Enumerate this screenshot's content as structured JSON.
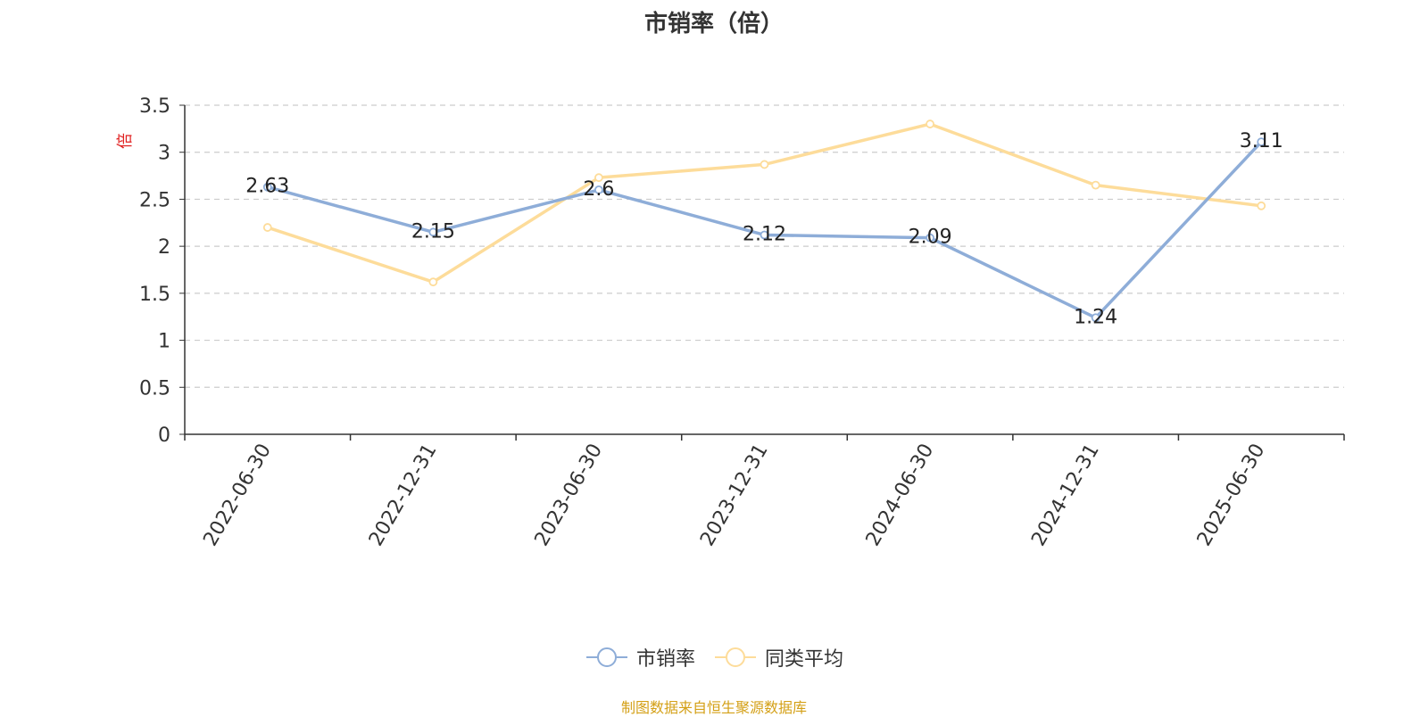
{
  "chart_data": {
    "type": "line",
    "title": "市销率（倍）",
    "ylabel": "倍",
    "categories": [
      "2022-06-30",
      "2022-12-31",
      "2023-06-30",
      "2023-12-31",
      "2024-06-30",
      "2024-12-31",
      "2025-06-30"
    ],
    "ylim": [
      0,
      3.5
    ],
    "yticks": [
      0,
      0.5,
      1,
      1.5,
      2,
      2.5,
      3,
      3.5
    ],
    "grid": true,
    "legend_position": "bottom",
    "series": [
      {
        "name": "市销率",
        "values": [
          2.63,
          2.15,
          2.6,
          2.12,
          2.09,
          1.24,
          3.11
        ],
        "color": "#8eadd8",
        "show_labels": true
      },
      {
        "name": "同类平均",
        "values": [
          2.2,
          1.62,
          2.73,
          2.87,
          3.3,
          2.65,
          2.43
        ],
        "color": "#fddc9a",
        "show_labels": false
      }
    ],
    "source": "制图数据来自恒生聚源数据库"
  }
}
